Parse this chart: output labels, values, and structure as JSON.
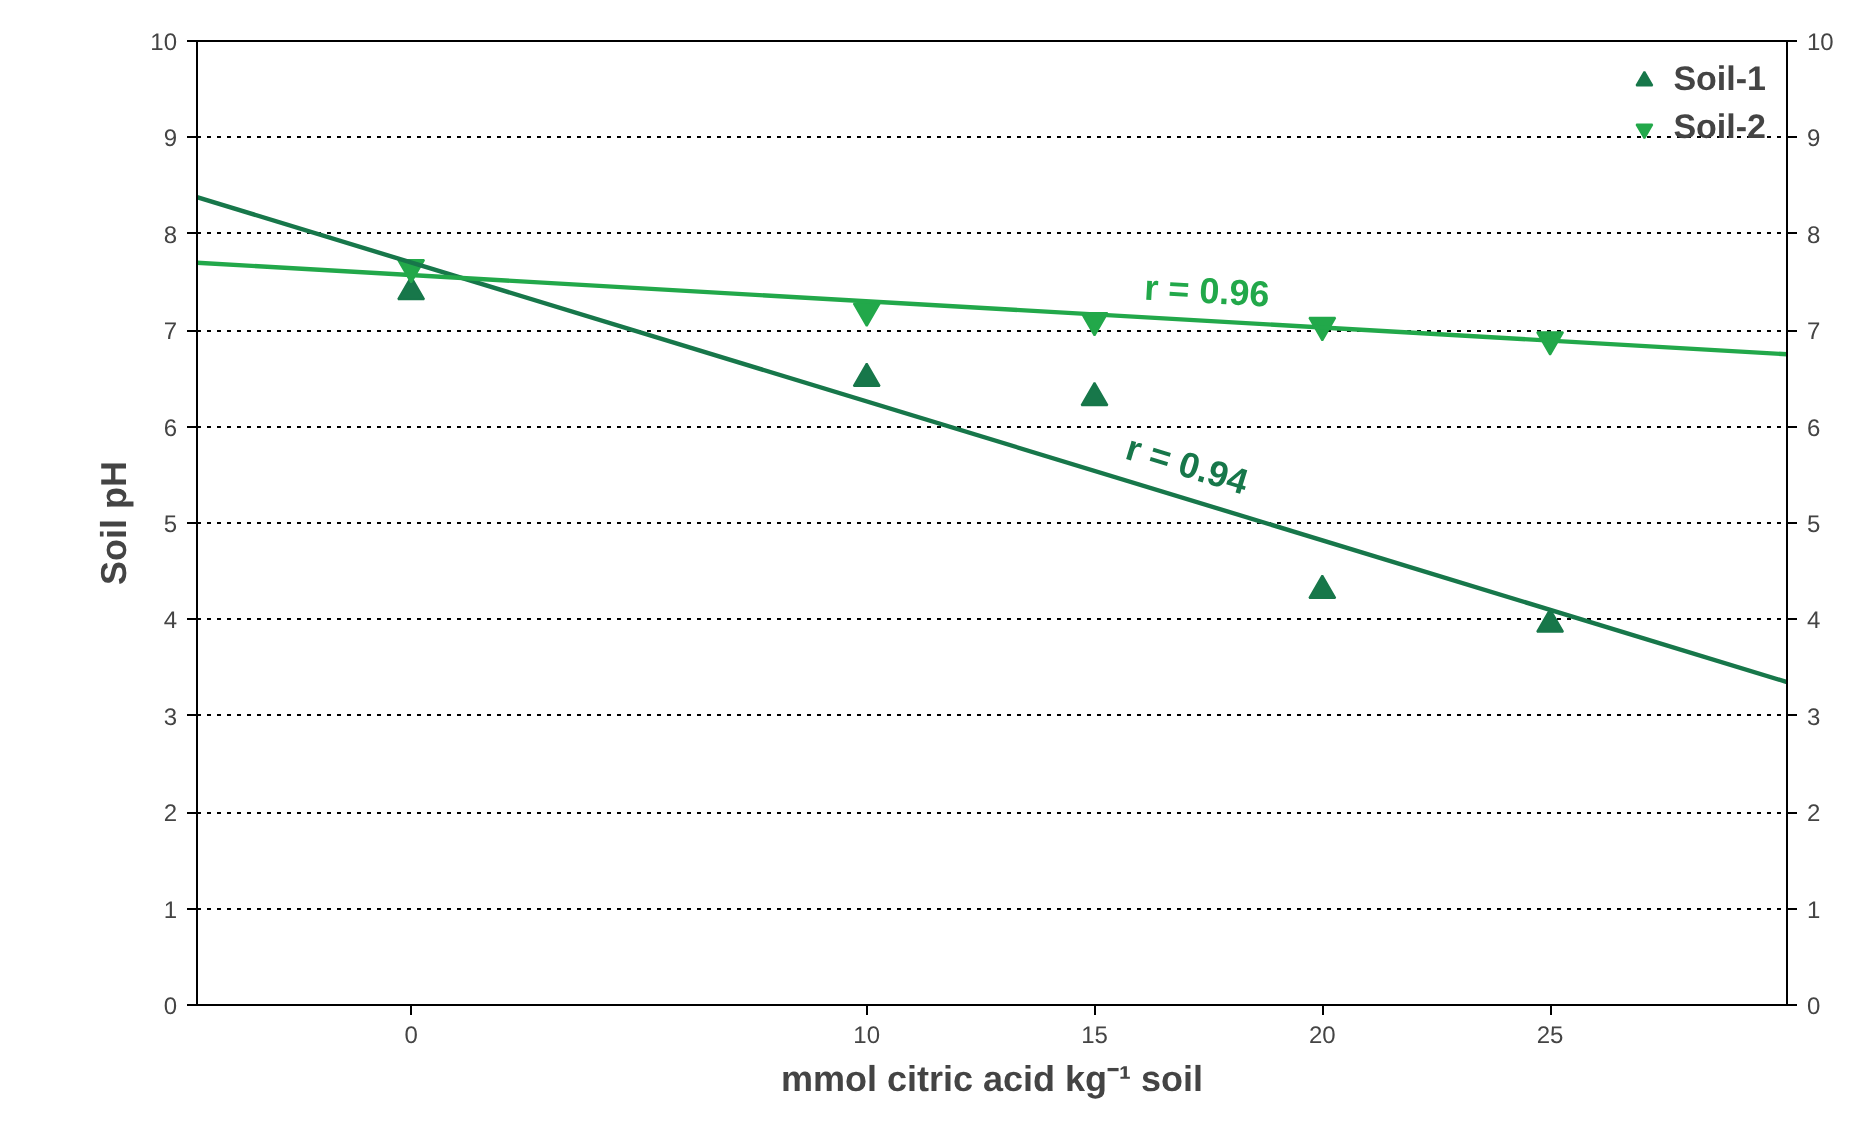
{
  "chart_data": {
    "type": "scatter",
    "xlabel": "mmol citric acid kg⁻¹ soil",
    "ylabel": "Soil pH",
    "xlim": [
      -4.7,
      30.2
    ],
    "xticks": [
      0,
      10,
      15,
      20,
      25
    ],
    "ylim": [
      0,
      10
    ],
    "yticks": [
      0,
      1,
      2,
      3,
      4,
      5,
      6,
      7,
      8,
      9,
      10
    ],
    "y2lim": [
      0,
      10
    ],
    "y2ticks": [
      0,
      1,
      2,
      3,
      4,
      5,
      6,
      7,
      8,
      9,
      10
    ],
    "grid": "y",
    "legend": "top right",
    "series": [
      {
        "name": "Soil-1",
        "color": "#17774a",
        "marker": "triangle",
        "x": [
          0,
          10,
          15,
          20,
          25
        ],
        "values": [
          7.4,
          6.5,
          6.3,
          4.3,
          3.95
        ]
      },
      {
        "name": "Soil-2",
        "color": "#22a84a",
        "marker": "triangle_down",
        "x": [
          0,
          10,
          15,
          20,
          25
        ],
        "values": [
          7.65,
          7.2,
          7.1,
          7.05,
          6.9
        ]
      },
      {
        "type": "line",
        "color": "#17774a",
        "x": [
          -4.7,
          30.2
        ],
        "values": [
          8.38,
          3.35
        ]
      },
      {
        "type": "line",
        "color": "#22a84a",
        "x": [
          -4.7,
          30.2
        ],
        "values": [
          7.7,
          6.75
        ]
      }
    ],
    "annotations": [
      "r = 0.96",
      "r = 0.94"
    ]
  }
}
